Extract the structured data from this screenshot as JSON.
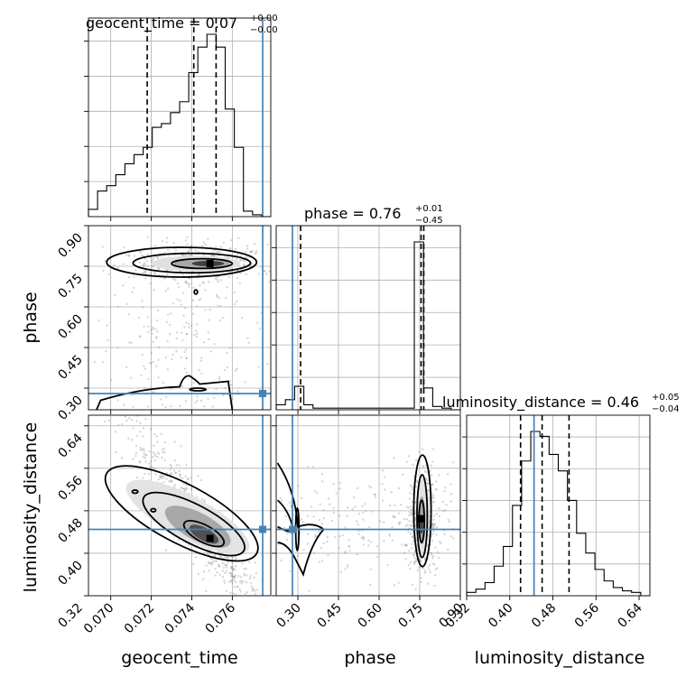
{
  "chart_data": {
    "type": "corner",
    "parameters": [
      "geocent_time",
      "phase",
      "luminosity_distance"
    ],
    "truths": {
      "geocent_time": 0.0775,
      "phase": 0.28,
      "luminosity_distance": 0.445
    },
    "ranges": {
      "geocent_time": [
        0.0689,
        0.0779
      ],
      "phase": [
        0.22,
        0.9
      ],
      "luminosity_distance": [
        0.32,
        0.66
      ]
    },
    "ticks": {
      "geocent_time": {
        "values": [
          0.07,
          0.072,
          0.074,
          0.076
        ],
        "labels": [
          "0.070",
          "0.072",
          "0.074",
          "0.076"
        ]
      },
      "phase": {
        "values": [
          0.3,
          0.45,
          0.6,
          0.75,
          0.9
        ],
        "labels": [
          "0.30",
          "0.45",
          "0.60",
          "0.75",
          "0.90"
        ]
      },
      "luminosity_distance": {
        "values": [
          0.32,
          0.4,
          0.48,
          0.56,
          0.64
        ],
        "labels": [
          "0.32",
          "0.40",
          "0.48",
          "0.56",
          "0.64"
        ]
      }
    },
    "titles": [
      {
        "param": "geocent_time",
        "main": "geocent_time = 0.07",
        "plus": "+0.00",
        "minus": "−0.00"
      },
      {
        "param": "phase",
        "main": "phase = 0.76",
        "plus": "+0.01",
        "minus": "−0.45"
      },
      {
        "param": "luminosity_distance",
        "main": "luminosity_distance = 0.46",
        "plus": "+0.05",
        "minus": "−0.04"
      }
    ],
    "quantiles": {
      "geocent_time": [
        0.0718,
        0.0741,
        0.0752
      ],
      "phase": [
        0.31,
        0.755,
        0.765
      ],
      "luminosity_distance": [
        0.42,
        0.46,
        0.51
      ]
    },
    "histograms": {
      "geocent_time": {
        "edges": [
          0.0689,
          0.06935,
          0.0698,
          0.07025,
          0.0707,
          0.07115,
          0.0716,
          0.07205,
          0.0725,
          0.07295,
          0.0734,
          0.07385,
          0.0743,
          0.07475,
          0.0752,
          0.07565,
          0.0761,
          0.07655,
          0.077,
          0.07745,
          0.0779
        ],
        "counts": [
          0.04,
          0.14,
          0.17,
          0.23,
          0.29,
          0.34,
          0.38,
          0.49,
          0.51,
          0.57,
          0.63,
          0.79,
          0.93,
          1.0,
          0.93,
          0.59,
          0.38,
          0.03,
          0.01,
          0.0
        ]
      },
      "phase": {
        "edges": [
          0.22,
          0.254,
          0.288,
          0.322,
          0.356,
          0.39,
          0.424,
          0.458,
          0.492,
          0.526,
          0.56,
          0.594,
          0.628,
          0.662,
          0.696,
          0.73,
          0.764,
          0.798,
          0.832,
          0.866,
          0.9
        ],
        "counts": [
          0.03,
          0.06,
          0.14,
          0.03,
          0.01,
          0.01,
          0.01,
          0.01,
          0.01,
          0.01,
          0.01,
          0.01,
          0.01,
          0.01,
          0.01,
          1.0,
          0.13,
          0.02,
          0.01,
          0.0
        ]
      },
      "luminosity_distance": {
        "edges": [
          0.32,
          0.337,
          0.354,
          0.371,
          0.388,
          0.405,
          0.422,
          0.439,
          0.456,
          0.473,
          0.49,
          0.507,
          0.524,
          0.541,
          0.558,
          0.575,
          0.592,
          0.609,
          0.626,
          0.643,
          0.66
        ],
        "counts": [
          0.02,
          0.04,
          0.08,
          0.18,
          0.3,
          0.55,
          0.82,
          1.0,
          0.97,
          0.86,
          0.76,
          0.58,
          0.38,
          0.26,
          0.16,
          0.09,
          0.05,
          0.03,
          0.02,
          0.0
        ]
      }
    },
    "scatter_points": 620,
    "grid": true
  }
}
